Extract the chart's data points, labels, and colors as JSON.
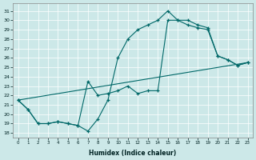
{
  "xlabel": "Humidex (Indice chaleur)",
  "bg_color": "#cce8e8",
  "line_color": "#006868",
  "xlim": [
    -0.5,
    23.5
  ],
  "ylim": [
    17.5,
    31.8
  ],
  "xticks": [
    0,
    1,
    2,
    3,
    4,
    5,
    6,
    7,
    8,
    9,
    10,
    11,
    12,
    13,
    14,
    15,
    16,
    17,
    18,
    19,
    20,
    21,
    22,
    23
  ],
  "yticks": [
    18,
    19,
    20,
    21,
    22,
    23,
    24,
    25,
    26,
    27,
    28,
    29,
    30,
    31
  ],
  "curve1_x": [
    0,
    1,
    2,
    3,
    4,
    5,
    6,
    7,
    8,
    9,
    10,
    11,
    12,
    13,
    14,
    15,
    16,
    17,
    18,
    19,
    20,
    21,
    22,
    23
  ],
  "curve1_y": [
    21.5,
    20.5,
    19.0,
    19.0,
    19.2,
    19.0,
    18.8,
    18.2,
    19.5,
    21.5,
    26.0,
    28.0,
    29.0,
    29.5,
    30.0,
    31.0,
    30.0,
    30.0,
    29.5,
    29.2,
    26.2,
    25.8,
    25.2,
    25.5
  ],
  "curve2_x": [
    0,
    1,
    2,
    3,
    4,
    5,
    6,
    7,
    8,
    9,
    10,
    11,
    12,
    13,
    14,
    15,
    16,
    17,
    18,
    19,
    20,
    21,
    22,
    23
  ],
  "curve2_y": [
    21.5,
    20.5,
    19.0,
    19.0,
    19.2,
    19.0,
    18.8,
    23.5,
    22.0,
    22.2,
    22.5,
    23.0,
    22.2,
    22.5,
    22.5,
    30.0,
    30.0,
    29.5,
    29.2,
    29.0,
    26.2,
    25.8,
    25.2,
    25.5
  ],
  "line3_x": [
    0,
    23
  ],
  "line3_y": [
    21.5,
    25.5
  ]
}
